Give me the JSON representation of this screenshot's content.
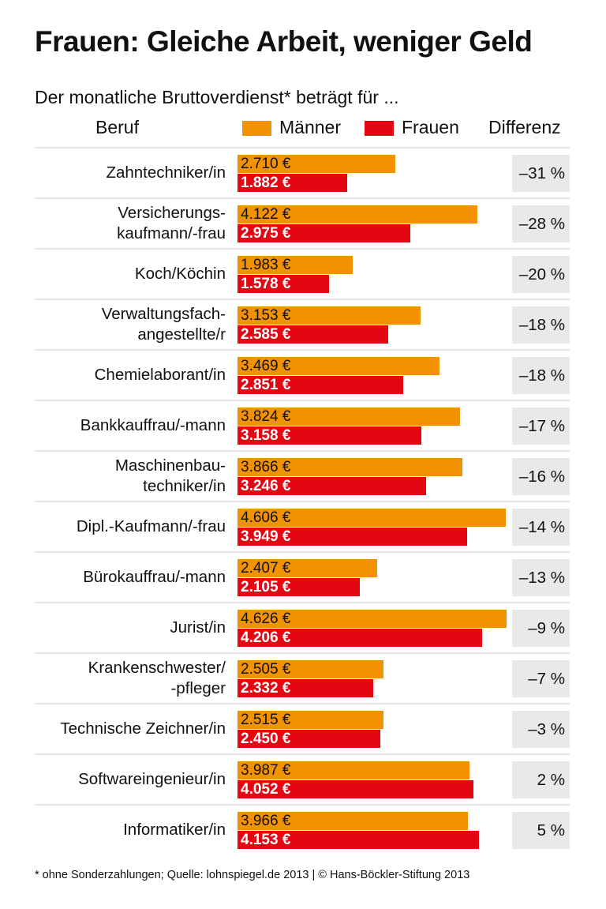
{
  "title": "Frauen: Gleiche Arbeit, weniger Geld",
  "subtitle": "Der monatliche Bruttoverdienst* beträgt für ...",
  "header": {
    "beruf": "Beruf",
    "differenz": "Differenz"
  },
  "footer": "* ohne Sonderzahlungen; Quelle: lohnspiegel.de 2013 | © Hans-Böckler-Stiftung 2013",
  "colors": {
    "maenner": "#f39200",
    "frauen": "#e30613",
    "diff_bg": "#e9e9e9"
  },
  "chart_data": {
    "type": "bar",
    "orientation": "horizontal",
    "title": "Frauen: Gleiche Arbeit, weniger Geld",
    "subtitle": "Der monatliche Bruttoverdienst* beträgt für ...",
    "legend": "top",
    "categories": [
      "Zahntechniker/in",
      "Versicherungs-\nkaufmann/-frau",
      "Koch/Köchin",
      "Verwaltungsfach-\nangestellte/r",
      "Chemielaborant/in",
      "Bankkauffrau/-mann",
      "Maschinenbau-\ntechniker/in",
      "Dipl.-Kaufmann/-frau",
      "Bürokauffrau/-mann",
      "Jurist/in",
      "Krankenschwester/\n-pfleger",
      "Technische Zeichner/in",
      "Softwareingenieur/in",
      "Informatiker/in"
    ],
    "series": [
      {
        "name": "Männer",
        "values": [
          2710,
          4122,
          1983,
          3153,
          3469,
          3824,
          3866,
          4606,
          2407,
          4626,
          2505,
          2515,
          3987,
          3966
        ],
        "labels": [
          "2.710 €",
          "4.122 €",
          "1.983 €",
          "3.153 €",
          "3.469 €",
          "3.824 €",
          "3.866 €",
          "4.606 €",
          "2.407 €",
          "4.626 €",
          "2.505 €",
          "2.515 €",
          "3.987 €",
          "3.966 €"
        ]
      },
      {
        "name": "Frauen",
        "values": [
          1882,
          2975,
          1578,
          2585,
          2851,
          3158,
          3246,
          3949,
          2105,
          4206,
          2332,
          2450,
          4052,
          4153
        ],
        "labels": [
          "1.882 €",
          "2.975 €",
          "1.578 €",
          "2.585 €",
          "2.851 €",
          "3.158 €",
          "3.246 €",
          "3.949 €",
          "2.105 €",
          "4.206 €",
          "2.332 €",
          "2.450 €",
          "4.052 €",
          "4.153 €"
        ]
      }
    ],
    "differenz": [
      "–31 %",
      "–28 %",
      "–20 %",
      "–18 %",
      "–18 %",
      "–17 %",
      "–16 %",
      "–14 %",
      "–13 %",
      "–9 %",
      "–7 %",
      "–3 %",
      "2 %",
      "5 %"
    ],
    "xlim": [
      0,
      4626
    ]
  }
}
